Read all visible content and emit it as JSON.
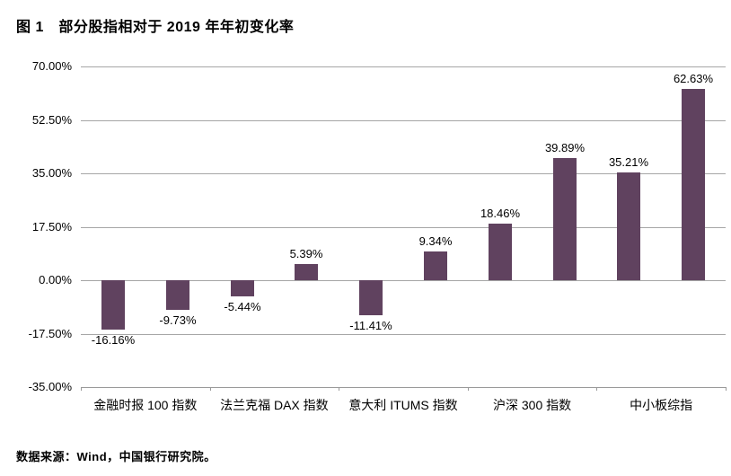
{
  "figure": {
    "title": "图 1　部分股指相对于 2019 年年初变化率",
    "source": "数据来源：Wind，中国银行研究院。"
  },
  "colors": {
    "bar": "#60425F",
    "gridline": "#a6a6a6",
    "text": "#000000",
    "background": "#ffffff"
  },
  "chart_data": {
    "type": "bar",
    "title": "图 1　部分股指相对于 2019 年年初变化率",
    "categories": [
      "金融时报 100 指数",
      "法兰克福 DAX 指数",
      "意大利 ITUMS 指数",
      "沪深 300 指数",
      "中小板综指"
    ],
    "values": [
      -16.16,
      -9.73,
      -5.44,
      5.39,
      -11.41,
      9.34,
      18.46,
      39.89,
      35.21,
      62.63
    ],
    "bar_labels": [
      "-16.16%",
      "-9.73%",
      "-5.44%",
      "5.39%",
      "-11.41%",
      "9.34%",
      "18.46%",
      "39.89%",
      "35.21%",
      "62.63%"
    ],
    "y_ticks": [
      "70.00%",
      "52.50%",
      "35.00%",
      "17.50%",
      "0.00%",
      "-17.50%",
      "-35.00%"
    ],
    "ylim": [
      -35,
      70
    ],
    "y_step": 17.5,
    "grid": true,
    "legend_position": "none",
    "bars_per_category_label": 2
  }
}
